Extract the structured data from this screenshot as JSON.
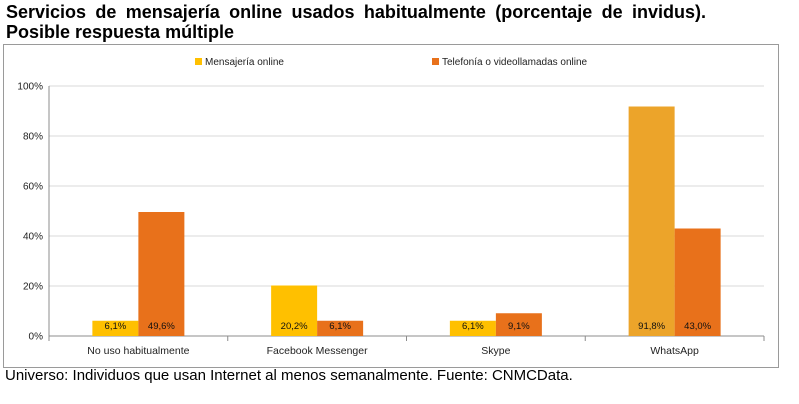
{
  "title": "Servicios de mensajería online usados habitualmente (porcentaje de invidus). Posible respuesta múltiple",
  "footnote": "Universo: Individuos que usan Internet al menos semanalmente. Fuente: CNMCData.",
  "chart_data": {
    "type": "bar",
    "categories": [
      "No uso habitualmente",
      "Facebook Messenger",
      "Skype",
      "WhatsApp"
    ],
    "series": [
      {
        "name": "Mensajería online",
        "color": "#FFC000",
        "altColors": {
          "3": "#ECA42A"
        },
        "values": [
          6.1,
          20.2,
          6.1,
          91.8
        ],
        "labels": [
          "6,1%",
          "20,2%",
          "6,1%",
          "91,8%"
        ]
      },
      {
        "name": "Telefonía o videollamadas online",
        "color": "#E8711B",
        "values": [
          49.6,
          6.1,
          9.1,
          43.0
        ],
        "labels": [
          "49,6%",
          "6,1%",
          "9,1%",
          "43,0%"
        ]
      }
    ],
    "ylim": [
      0,
      100
    ],
    "yticks": [
      "0%",
      "20%",
      "40%",
      "60%",
      "80%",
      "100%"
    ],
    "grid": true,
    "legend": "top"
  }
}
